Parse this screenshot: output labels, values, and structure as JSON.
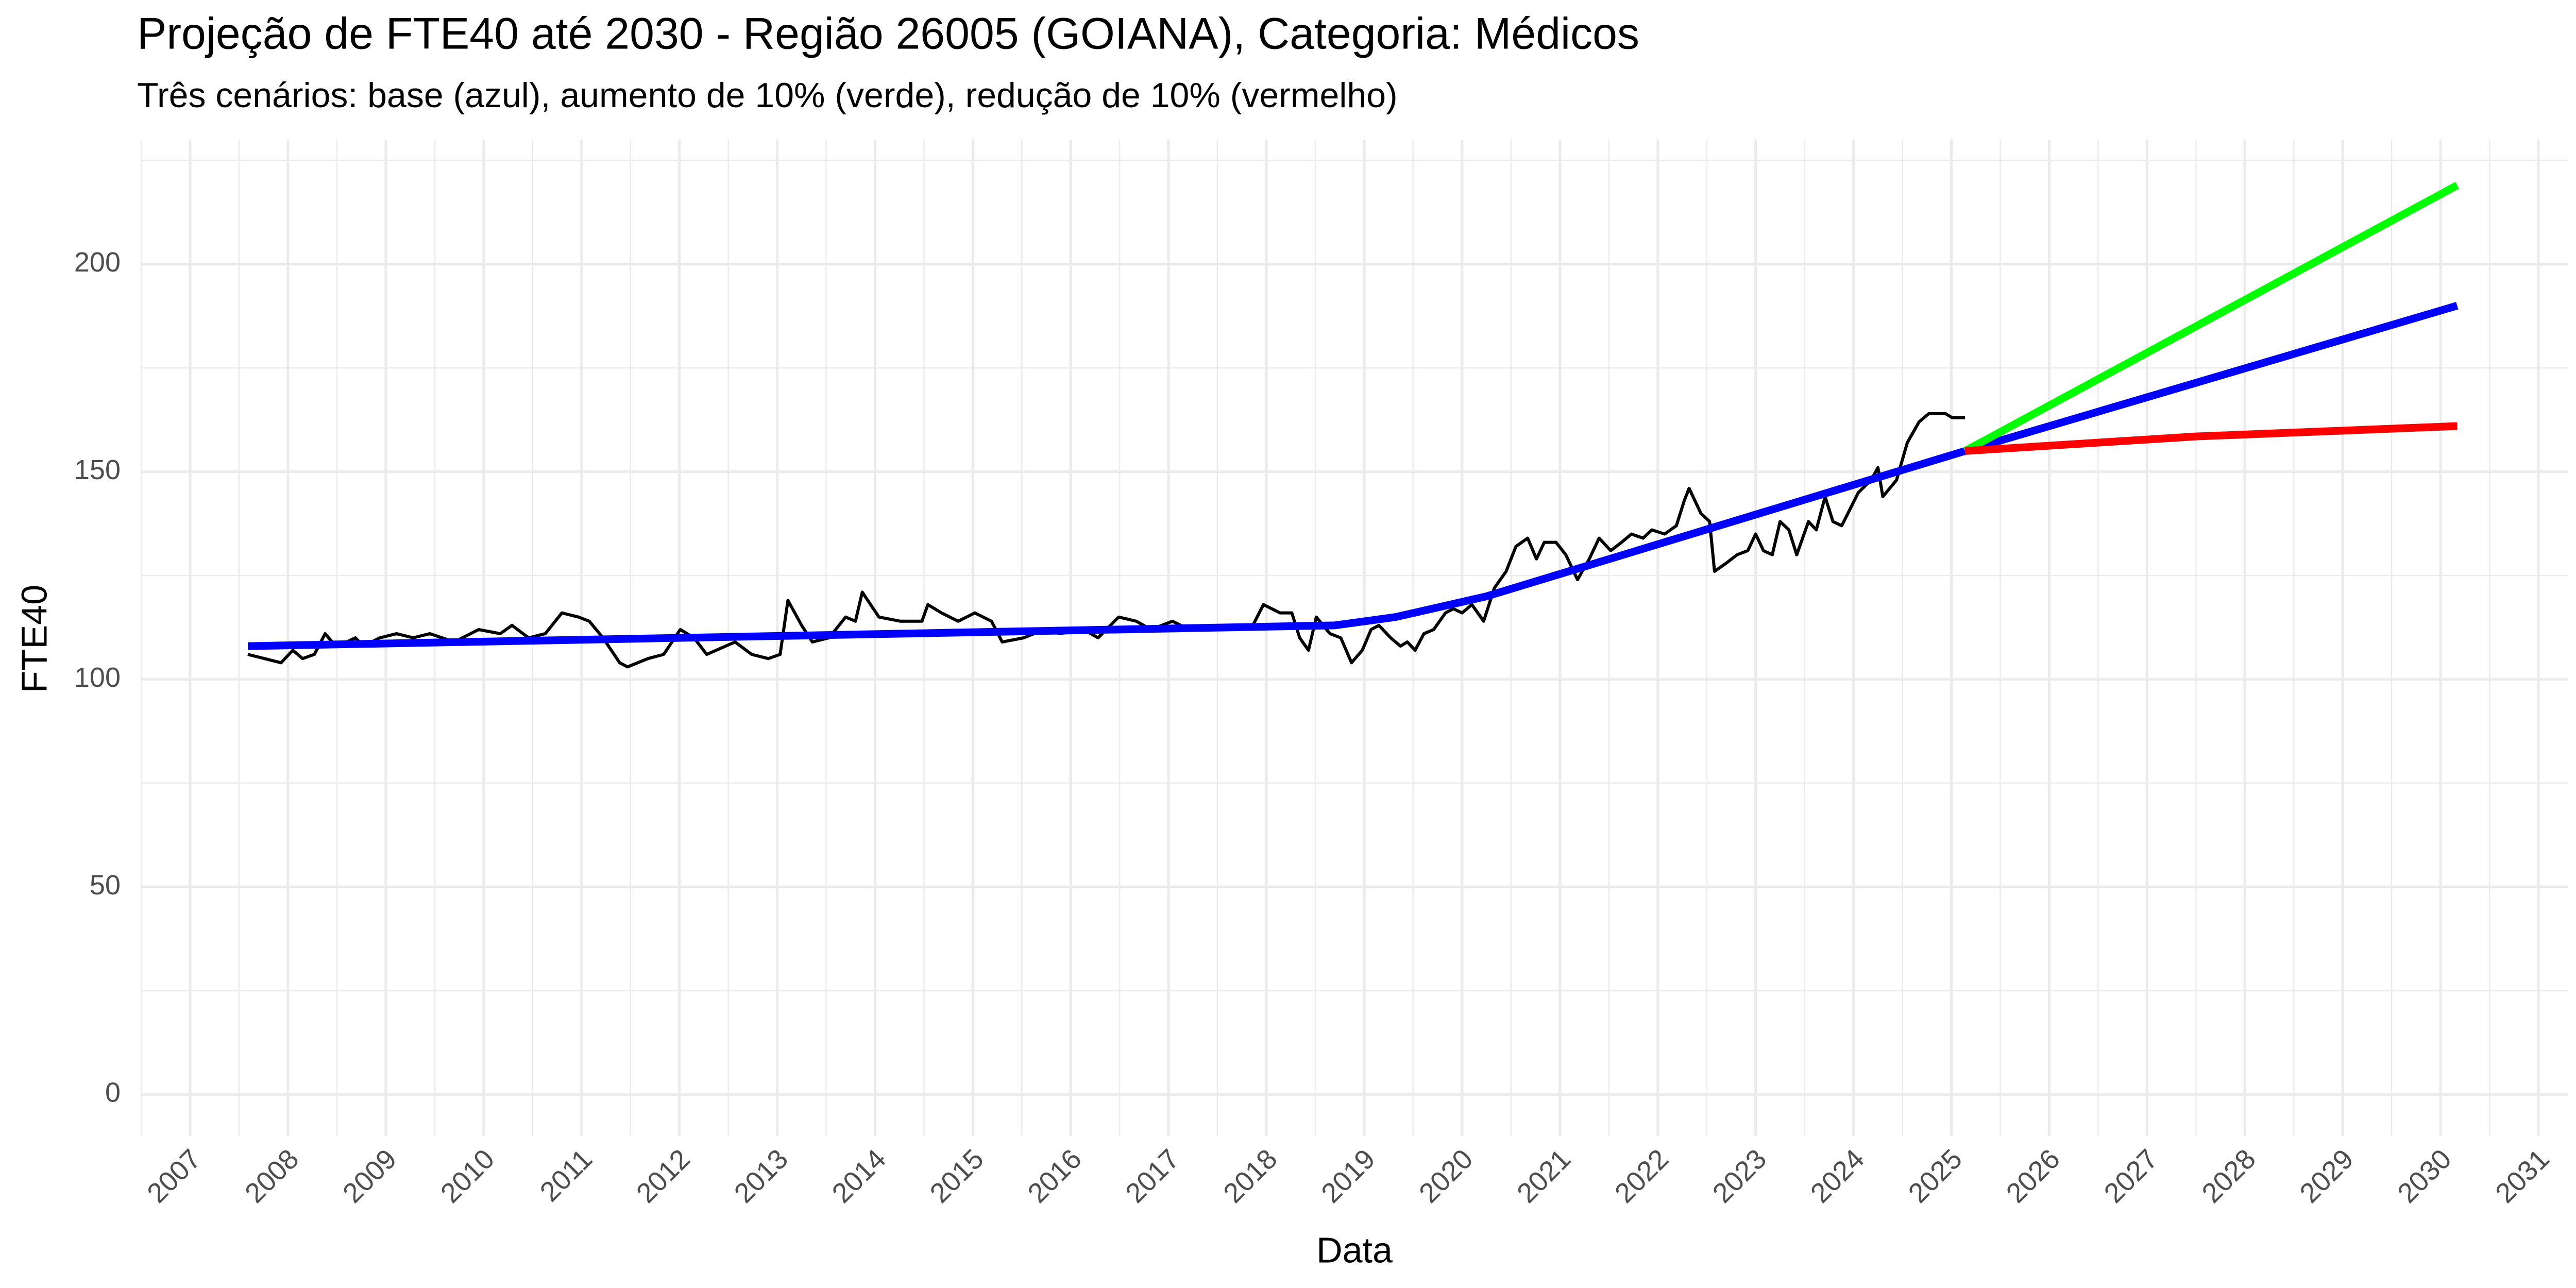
{
  "chart_data": {
    "type": "line",
    "title": "Projeção de FTE40 até 2030 - Região 26005 (GOIANA), Categoria: Médicos",
    "subtitle": "Três cenários: base (azul), aumento de 10% (verde), redução de 10% (vermelho)",
    "x_label": "Data",
    "y_label": "FTE40",
    "xlim": [
      2006.5,
      2031.3
    ],
    "ylim": [
      -10,
      230
    ],
    "xticks": [
      2007,
      2008,
      2009,
      2010,
      2011,
      2012,
      2013,
      2014,
      2015,
      2016,
      2017,
      2018,
      2019,
      2020,
      2021,
      2022,
      2023,
      2024,
      2025,
      2026,
      2027,
      2028,
      2029,
      2030,
      2031
    ],
    "yticks": [
      0,
      50,
      100,
      150,
      200
    ],
    "grid": true,
    "series": [
      {
        "color": "#000000",
        "x": [
          2007.59,
          2007.76,
          2007.93,
          2008.05,
          2008.15,
          2008.27,
          2008.38,
          2008.49,
          2008.6,
          2008.69,
          2008.77,
          2008.94,
          2009.11,
          2009.28,
          2009.45,
          2009.7,
          2009.95,
          2010.17,
          2010.29,
          2010.46,
          2010.63,
          2010.8,
          2010.97,
          2011.08,
          2011.22,
          2011.39,
          2011.47,
          2011.68,
          2011.84,
          2012.01,
          2012.15,
          2012.28,
          2012.57,
          2012.74,
          2012.91,
          2013.03,
          2013.11,
          2013.25,
          2013.36,
          2013.53,
          2013.7,
          2013.8,
          2013.87,
          2014.04,
          2014.26,
          2014.48,
          2014.54,
          2014.68,
          2014.85,
          2015.02,
          2015.19,
          2015.3,
          2015.52,
          2015.73,
          2015.89,
          2016.13,
          2016.28,
          2016.49,
          2016.67,
          2016.82,
          2017.04,
          2017.21,
          2017.46,
          2017.63,
          2017.84,
          2017.97,
          2018.14,
          2018.26,
          2018.34,
          2018.43,
          2018.51,
          2018.65,
          2018.76,
          2018.87,
          2018.98,
          2019.07,
          2019.15,
          2019.27,
          2019.37,
          2019.44,
          2019.52,
          2019.61,
          2019.71,
          2019.83,
          2019.91,
          2020.0,
          2020.1,
          2020.22,
          2020.33,
          2020.45,
          2020.55,
          2020.67,
          2020.76,
          2020.84,
          2020.96,
          2021.06,
          2021.18,
          2021.3,
          2021.4,
          2021.52,
          2021.63,
          2021.73,
          2021.85,
          2021.94,
          2022.07,
          2022.19,
          2022.27,
          2022.32,
          2022.44,
          2022.53,
          2022.58,
          2022.7,
          2022.81,
          2022.92,
          2023.0,
          2023.08,
          2023.17,
          2023.25,
          2023.34,
          2023.42,
          2023.54,
          2023.62,
          2023.71,
          2023.79,
          2023.88,
          2024.05,
          2024.18,
          2024.25,
          2024.3,
          2024.44,
          2024.55,
          2024.67,
          2024.77,
          2024.94,
          2025.01,
          2025.14
        ],
        "values": [
          106,
          105,
          104,
          107,
          105,
          106,
          111,
          108,
          109,
          110,
          108,
          110,
          111,
          110,
          111,
          109,
          112,
          111,
          113,
          110,
          111,
          116,
          115,
          114,
          110,
          104,
          103,
          105,
          106,
          112,
          110,
          106,
          109,
          106,
          105,
          106,
          119,
          113,
          109,
          110,
          115,
          114,
          121,
          115,
          114,
          114,
          118,
          116,
          114,
          116,
          114,
          109,
          110,
          112,
          111,
          112,
          110,
          115,
          114,
          112,
          114,
          112,
          112,
          113,
          112,
          118,
          116,
          116,
          110,
          107,
          115,
          111,
          110,
          104,
          107,
          112,
          113,
          110,
          108,
          109,
          107,
          111,
          112,
          116,
          117,
          116,
          118,
          114,
          122,
          126,
          132,
          134,
          129,
          133,
          133,
          130,
          124,
          129,
          134,
          131,
          133,
          135,
          134,
          136,
          135,
          137,
          143,
          146,
          140,
          138,
          126,
          128,
          130,
          131,
          135,
          131,
          130,
          138,
          136,
          130,
          138,
          136,
          144,
          138,
          137,
          145,
          148,
          151,
          144,
          148,
          157,
          162,
          164,
          164,
          163,
          163
        ]
      },
      {
        "color": "#0000ff",
        "x": [
          2007.59,
          2018.7,
          2019.32,
          2020.25,
          2025.14,
          2030.17
        ],
        "values": [
          108,
          113,
          115,
          120,
          155,
          190
        ]
      },
      {
        "color": "#00ff00",
        "x": [
          2025.14,
          2030.17
        ],
        "values": [
          155,
          219
        ]
      },
      {
        "color": "#ff0000",
        "x": [
          2025.14,
          2027.5,
          2030.17
        ],
        "values": [
          155,
          158.5,
          161
        ]
      }
    ]
  }
}
